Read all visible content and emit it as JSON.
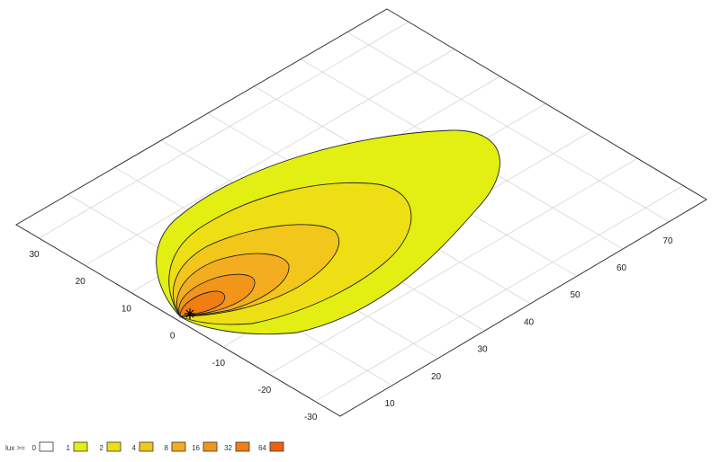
{
  "chart_data": {
    "type": "contour",
    "x_ticks": [
      "10",
      "20",
      "30",
      "40",
      "50",
      "60",
      "70"
    ],
    "y_ticks": [
      "30",
      "20",
      "10",
      "0",
      "-10",
      "-20",
      "-30"
    ],
    "xlim": [
      -1,
      78.5
    ],
    "ylim": [
      -35,
      35
    ],
    "grid": true,
    "source_marker": "asterisk",
    "legend": {
      "title": "lux >=",
      "placement": "bottom-left",
      "items": [
        {
          "label": "0",
          "color": "#ffffff"
        },
        {
          "label": "1",
          "color": "#e3ee12"
        },
        {
          "label": "2",
          "color": "#eedf14"
        },
        {
          "label": "4",
          "color": "#f2c61a"
        },
        {
          "label": "8",
          "color": "#f4ad1e"
        },
        {
          "label": "16",
          "color": "#f2951a"
        },
        {
          "label": "32",
          "color": "#f07e12"
        },
        {
          "label": "64",
          "color": "#ee6010"
        }
      ]
    },
    "contour_levels": [
      1,
      2,
      4,
      8,
      16,
      32
    ]
  }
}
